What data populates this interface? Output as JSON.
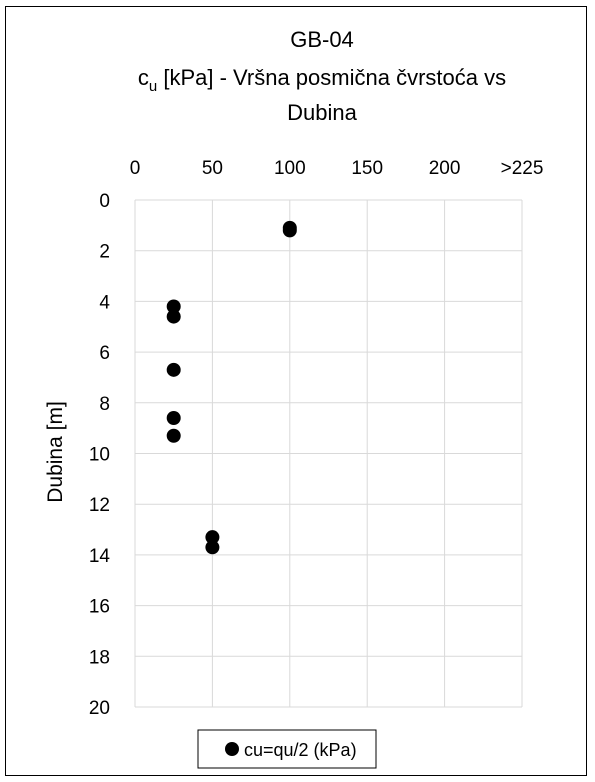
{
  "chart_data": {
    "type": "scatter",
    "title": {
      "line1": "GB-04",
      "line2_prefix": "c",
      "line2_sub": "u",
      "line2_rest": " [kPa] - Vršna posmična čvrstoća vs",
      "line3": "Dubina"
    },
    "xlabel": "",
    "ylabel": "Dubina [m]",
    "x_axis_position": "top",
    "y_axis_reversed": true,
    "xlim": [
      0,
      250
    ],
    "ylim": [
      0,
      20
    ],
    "x_ticks": [
      0,
      50,
      100,
      150,
      200,
      250
    ],
    "x_tick_labels": [
      "0",
      "50",
      "100",
      "150",
      "200",
      ">225"
    ],
    "y_ticks": [
      0,
      2,
      4,
      6,
      8,
      10,
      12,
      14,
      16,
      18,
      20
    ],
    "y_tick_labels": [
      "0",
      "2",
      "4",
      "6",
      "8",
      "10",
      "12",
      "14",
      "16",
      "18",
      "20"
    ],
    "grid": true,
    "legend_position": "bottom",
    "series": [
      {
        "name": "cu=qu/2 (kPa)",
        "color": "#000000",
        "marker": "circle",
        "points": [
          {
            "x": 100,
            "y": 1.1
          },
          {
            "x": 100,
            "y": 1.2
          },
          {
            "x": 25,
            "y": 4.2
          },
          {
            "x": 25,
            "y": 4.6
          },
          {
            "x": 25,
            "y": 6.7
          },
          {
            "x": 25,
            "y": 8.6
          },
          {
            "x": 25,
            "y": 9.3
          },
          {
            "x": 50,
            "y": 13.3
          },
          {
            "x": 50,
            "y": 13.7
          }
        ]
      }
    ]
  }
}
